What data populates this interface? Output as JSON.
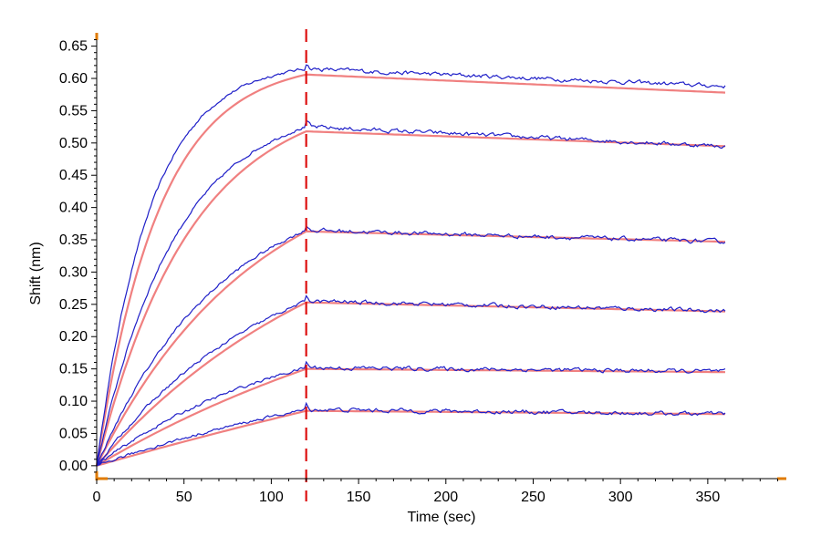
{
  "chart_data": {
    "type": "line",
    "title": "",
    "xlabel": "Time (sec)",
    "ylabel": "Shift (nm)",
    "xlim": [
      0,
      395
    ],
    "ylim": [
      -0.02,
      0.665
    ],
    "xticks": [
      0,
      50,
      100,
      150,
      200,
      250,
      300,
      350
    ],
    "yticks": [
      0.0,
      0.05,
      0.1,
      0.15,
      0.2,
      0.25,
      0.3,
      0.35,
      0.4,
      0.45,
      0.5,
      0.55,
      0.6,
      0.65
    ],
    "ytick_labels": [
      "0.00",
      "0.05",
      "0.10",
      "0.15",
      "0.20",
      "0.25",
      "0.30",
      "0.35",
      "0.40",
      "0.45",
      "0.50",
      "0.55",
      "0.60",
      "0.65"
    ],
    "grid": false,
    "legend": false,
    "association_end_sec": 120,
    "end_sec": 360,
    "colors": {
      "data": "#1f1fc8",
      "fit": "#f08080",
      "marker": "#dd1111",
      "axis_accent": "#e07b00"
    },
    "series": [
      {
        "kind": "fit",
        "association_k": 0.028,
        "peak": 0.606,
        "end": 0.578
      },
      {
        "kind": "fit",
        "association_k": 0.0185,
        "peak": 0.518,
        "end": 0.495
      },
      {
        "kind": "fit",
        "association_k": 0.011,
        "peak": 0.363,
        "end": 0.347
      },
      {
        "kind": "fit",
        "association_k": 0.007,
        "peak": 0.253,
        "end": 0.239
      },
      {
        "kind": "fit",
        "association_k": 0.0045,
        "peak": 0.15,
        "end": 0.145
      },
      {
        "kind": "fit",
        "association_k": 0.0015,
        "peak": 0.085,
        "end": 0.08
      },
      {
        "kind": "data",
        "association_k": 0.033,
        "peak": 0.615,
        "end": 0.588
      },
      {
        "kind": "data",
        "association_k": 0.022,
        "peak": 0.525,
        "end": 0.495
      },
      {
        "kind": "data",
        "association_k": 0.014,
        "peak": 0.365,
        "end": 0.347
      },
      {
        "kind": "data",
        "association_k": 0.01,
        "peak": 0.255,
        "end": 0.24
      },
      {
        "kind": "data",
        "association_k": 0.009,
        "peak": 0.152,
        "end": 0.146
      },
      {
        "kind": "data",
        "association_k": 0.005,
        "peak": 0.087,
        "end": 0.08
      }
    ]
  }
}
